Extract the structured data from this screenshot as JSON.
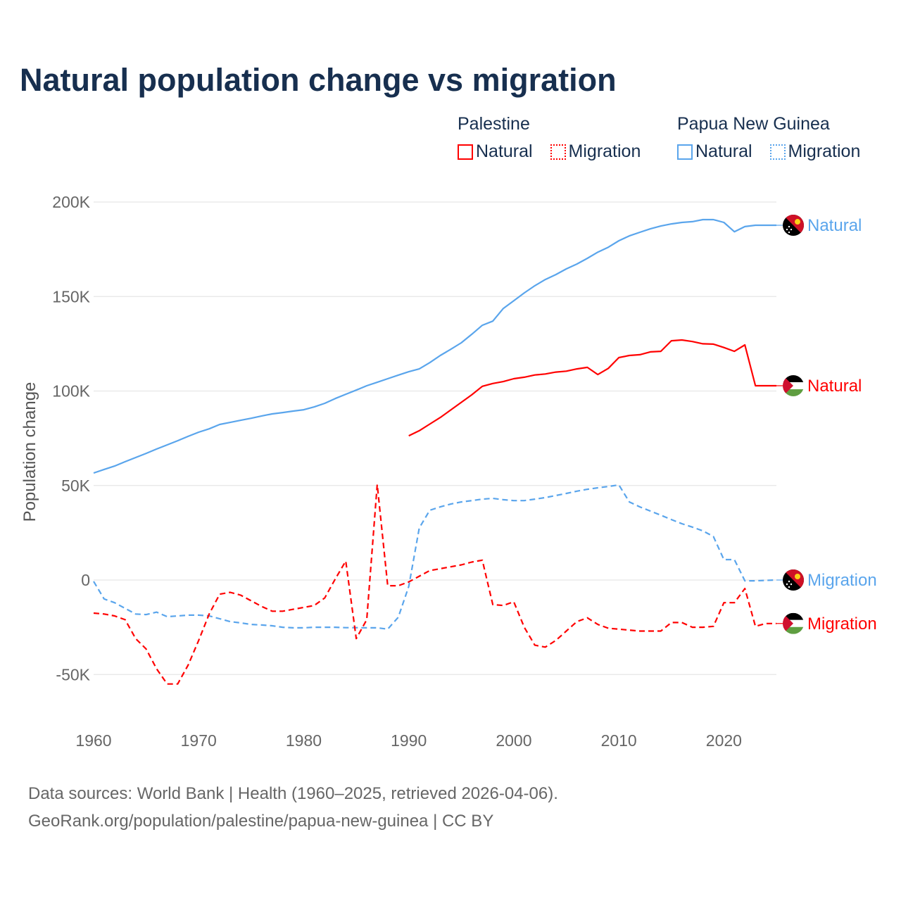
{
  "title": "Natural population change vs migration",
  "legend": [
    {
      "group": "Palestine",
      "color": "#ff0000",
      "items": [
        {
          "label": "Natural",
          "style": "solid"
        },
        {
          "label": "Migration",
          "style": "dotted"
        }
      ]
    },
    {
      "group": "Papua New Guinea",
      "color": "#5aa5ec",
      "items": [
        {
          "label": "Natural",
          "style": "solid"
        },
        {
          "label": "Migration",
          "style": "dotted"
        }
      ]
    }
  ],
  "source_lines": [
    "Data sources: World Bank | Health (1960–2025, retrieved 2026-04-06).",
    "GeoRank.org/population/palestine/papua-new-guinea | CC BY"
  ],
  "chart_data": {
    "type": "line",
    "title": "Natural population change vs migration",
    "xlabel": "",
    "ylabel": "Population change",
    "xlim": [
      1960,
      2025
    ],
    "ylim": [
      -70000,
      200000
    ],
    "x_ticks": [
      1960,
      1970,
      1980,
      1990,
      2000,
      2010,
      2020
    ],
    "x_tick_labels": [
      "1960",
      "1970",
      "1980",
      "1990",
      "2000",
      "2010",
      "2020"
    ],
    "y_ticks": [
      200000,
      150000,
      100000,
      50000,
      0,
      -50000
    ],
    "y_tick_labels": [
      "200K",
      "150K",
      "100K",
      "50K",
      "0",
      "-50K"
    ],
    "grid": true,
    "legend_position": "top-right",
    "series": [
      {
        "name": "Papua New Guinea Natural",
        "end_label": "Natural",
        "flag": "png",
        "color": "#5aa5ec",
        "dash": "solid",
        "x_start": 1960,
        "values": [
          56600,
          58500,
          60300,
          62600,
          64800,
          67000,
          69300,
          71500,
          73700,
          76000,
          78200,
          80000,
          82300,
          83400,
          84500,
          85600,
          86800,
          87900,
          88600,
          89400,
          90100,
          91600,
          93500,
          96000,
          98300,
          100500,
          102800,
          104600,
          106500,
          108400,
          110200,
          111700,
          115000,
          118800,
          122100,
          125500,
          130000,
          134800,
          137000,
          143700,
          147800,
          151900,
          155700,
          159000,
          161600,
          164600,
          167200,
          170200,
          173500,
          176100,
          179500,
          182100,
          184000,
          185800,
          187300,
          188400,
          189200,
          189600,
          190700,
          190700,
          189200,
          184300,
          187000,
          187700,
          187700,
          187700
        ]
      },
      {
        "name": "Palestine Natural",
        "end_label": "Natural",
        "flag": "ps",
        "color": "#ff0000",
        "dash": "solid",
        "x_start": 1990,
        "values": [
          76300,
          79000,
          82500,
          86000,
          90000,
          94000,
          98000,
          102500,
          104000,
          105000,
          106500,
          107300,
          108500,
          109000,
          110000,
          110500,
          111700,
          112500,
          108700,
          112000,
          117700,
          118800,
          119200,
          120700,
          121000,
          126600,
          127000,
          126200,
          125000,
          124800,
          123000,
          121000,
          124400,
          102800,
          102800,
          102800
        ]
      },
      {
        "name": "Papua New Guinea Migration",
        "end_label": "Migration",
        "flag": "png",
        "color": "#5aa5ec",
        "dash": "dashed",
        "x_start": 1960,
        "values": [
          -700,
          -10000,
          -12000,
          -15000,
          -18000,
          -18300,
          -17000,
          -19400,
          -19000,
          -18600,
          -18600,
          -19000,
          -20500,
          -22000,
          -22700,
          -23500,
          -23800,
          -24200,
          -25000,
          -25300,
          -25300,
          -25000,
          -25000,
          -25000,
          -25200,
          -25200,
          -25300,
          -25300,
          -26000,
          -19700,
          -3400,
          27500,
          36900,
          38700,
          40200,
          41300,
          42000,
          42800,
          43200,
          42500,
          42000,
          42000,
          42800,
          43600,
          44700,
          45800,
          47000,
          48000,
          48800,
          49500,
          50300,
          41300,
          38700,
          36500,
          34300,
          32000,
          29800,
          28000,
          26000,
          23000,
          10800,
          10800,
          -400,
          -400,
          -200,
          0
        ]
      },
      {
        "name": "Palestine Migration",
        "end_label": "Migration",
        "flag": "ps",
        "color": "#ff0000",
        "dash": "dashed",
        "x_start": 1960,
        "values": [
          -17500,
          -18000,
          -19000,
          -21000,
          -31000,
          -36500,
          -47000,
          -55000,
          -55000,
          -45000,
          -32000,
          -18000,
          -7500,
          -6500,
          -8000,
          -11000,
          -14000,
          -16500,
          -16500,
          -15500,
          -14500,
          -13500,
          -9500,
          500,
          10000,
          -31000,
          -21000,
          50500,
          -3000,
          -3000,
          -1000,
          2000,
          5000,
          6000,
          7000,
          8000,
          9500,
          10500,
          -13000,
          -13500,
          -11500,
          -25000,
          -34500,
          -35500,
          -32000,
          -27000,
          -22000,
          -20000,
          -23500,
          -25500,
          -26000,
          -26500,
          -27000,
          -27000,
          -27000,
          -22500,
          -22500,
          -25000,
          -25000,
          -24500,
          -12000,
          -12000,
          -4500,
          -24500,
          -23000,
          -23000
        ]
      }
    ]
  }
}
